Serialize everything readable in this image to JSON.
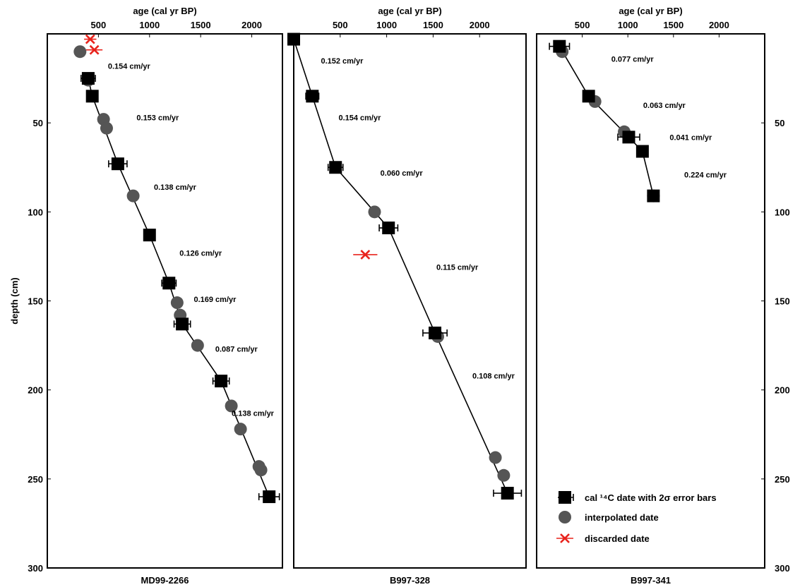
{
  "chart_data": {
    "type": "scatter",
    "shared": {
      "ylabel": "depth (cm)",
      "xlabel": "age (cal yr BP)",
      "ylim": [
        300,
        0
      ],
      "y_ticks": [
        "50",
        "100",
        "150",
        "200",
        "250",
        "300"
      ],
      "y_tick_values": [
        50,
        100,
        150,
        200,
        250,
        300
      ]
    },
    "colors": {
      "dated": "#000000",
      "interpolated": "#555555",
      "discarded": "#e8231c",
      "line": "#000000"
    },
    "legend": {
      "placement": "bottom-right",
      "items": [
        {
          "label": "cal ¹⁴C date with 2σ error bars",
          "marker": "square"
        },
        {
          "label": "interpolated date",
          "marker": "circle"
        },
        {
          "label": "discarded date",
          "marker": "cross"
        }
      ]
    },
    "panels": [
      {
        "title": "MD99-2266",
        "xlabel": "age (cal yr BP)",
        "xlim": [
          0,
          2300
        ],
        "x_ticks": [
          "500",
          "1000",
          "1500",
          "2000"
        ],
        "x_tick_values": [
          500,
          1000,
          1500,
          2000
        ],
        "dated": [
          {
            "age": 400,
            "depth": 25,
            "err": 70
          },
          {
            "age": 440,
            "depth": 35,
            "err": 40
          },
          {
            "age": 690,
            "depth": 73,
            "err": 90
          },
          {
            "age": 1000,
            "depth": 113,
            "err": 30
          },
          {
            "age": 1190,
            "depth": 140,
            "err": 70
          },
          {
            "age": 1320,
            "depth": 163,
            "err": 80
          },
          {
            "age": 1700,
            "depth": 195,
            "err": 80
          },
          {
            "age": 2170,
            "depth": 260,
            "err": 100
          }
        ],
        "interpolated": [
          {
            "age": 320,
            "depth": 10
          },
          {
            "age": 400,
            "depth": 26
          },
          {
            "age": 550,
            "depth": 48
          },
          {
            "age": 580,
            "depth": 53
          },
          {
            "age": 840,
            "depth": 91
          },
          {
            "age": 1270,
            "depth": 151
          },
          {
            "age": 1300,
            "depth": 158
          },
          {
            "age": 1470,
            "depth": 175
          },
          {
            "age": 1800,
            "depth": 209
          },
          {
            "age": 1890,
            "depth": 222
          },
          {
            "age": 2070,
            "depth": 243
          },
          {
            "age": 2090,
            "depth": 245
          }
        ],
        "discarded": [
          {
            "age": 420,
            "depth": 3,
            "err": 60
          },
          {
            "age": 460,
            "depth": 9,
            "err": 80
          }
        ],
        "line": [
          [
            400,
            25
          ],
          [
            440,
            35
          ],
          [
            690,
            73
          ],
          [
            1000,
            113
          ],
          [
            1190,
            140
          ],
          [
            1320,
            163
          ],
          [
            1700,
            195
          ],
          [
            2170,
            260
          ]
        ],
        "rates": [
          {
            "text": "0.154 cm/yr",
            "age": 800,
            "depth": 18
          },
          {
            "text": "0.153 cm/yr",
            "age": 1080,
            "depth": 47
          },
          {
            "text": "0.138 cm/yr",
            "age": 1250,
            "depth": 86
          },
          {
            "text": "0.126 cm/yr",
            "age": 1500,
            "depth": 123
          },
          {
            "text": "0.169 cm/yr",
            "age": 1640,
            "depth": 149
          },
          {
            "text": "0.087 cm/yr",
            "age": 1850,
            "depth": 177
          },
          {
            "text": "0.138 cm/yr",
            "age": 2010,
            "depth": 213
          }
        ]
      },
      {
        "title": "B997-328",
        "xlabel": "age (cal yr BP)",
        "xlim": [
          0,
          2500
        ],
        "x_ticks": [
          "500",
          "1000",
          "1500",
          "2000"
        ],
        "x_tick_values": [
          500,
          1000,
          1500,
          2000
        ],
        "dated": [
          {
            "age": 0,
            "depth": 3,
            "err": 0
          },
          {
            "age": 200,
            "depth": 35,
            "err": 70
          },
          {
            "age": 450,
            "depth": 75,
            "err": 80
          },
          {
            "age": 1020,
            "depth": 109,
            "err": 100
          },
          {
            "age": 1520,
            "depth": 168,
            "err": 130
          },
          {
            "age": 2300,
            "depth": 258,
            "err": 150
          }
        ],
        "interpolated": [
          {
            "age": 870,
            "depth": 100
          },
          {
            "age": 1550,
            "depth": 170
          },
          {
            "age": 2170,
            "depth": 238
          },
          {
            "age": 2260,
            "depth": 248
          }
        ],
        "discarded": [
          {
            "age": 770,
            "depth": 124,
            "err": 130
          }
        ],
        "line": [
          [
            0,
            3
          ],
          [
            200,
            35
          ],
          [
            450,
            75
          ],
          [
            1020,
            109
          ],
          [
            1520,
            168
          ],
          [
            2300,
            258
          ]
        ],
        "rates": [
          {
            "text": "0.152 cm/yr",
            "age": 520,
            "depth": 15
          },
          {
            "text": "0.154 cm/yr",
            "age": 710,
            "depth": 47
          },
          {
            "text": "0.060 cm/yr",
            "age": 1160,
            "depth": 78
          },
          {
            "text": "0.115 cm/yr",
            "age": 1760,
            "depth": 131
          },
          {
            "text": "0.108 cm/yr",
            "age": 2150,
            "depth": 192
          }
        ]
      },
      {
        "title": "B997-341",
        "xlabel": "age (cal yr BP)",
        "xlim": [
          0,
          2500
        ],
        "x_ticks": [
          "500",
          "1000",
          "1500",
          "2000"
        ],
        "x_tick_values": [
          500,
          1000,
          1500,
          2000
        ],
        "dated": [
          {
            "age": 250,
            "depth": 7,
            "err": 110
          },
          {
            "age": 570,
            "depth": 35,
            "err": 40
          },
          {
            "age": 1010,
            "depth": 58,
            "err": 120
          },
          {
            "age": 1160,
            "depth": 66,
            "err": 0
          },
          {
            "age": 1280,
            "depth": 91,
            "err": 0
          }
        ],
        "interpolated": [
          {
            "age": 280,
            "depth": 10
          },
          {
            "age": 640,
            "depth": 38
          },
          {
            "age": 960,
            "depth": 55
          },
          {
            "age": 1280,
            "depth": 91
          }
        ],
        "discarded": [],
        "line": [
          [
            250,
            7
          ],
          [
            570,
            35
          ],
          [
            1010,
            58
          ],
          [
            1160,
            66
          ],
          [
            1280,
            91
          ]
        ],
        "rates": [
          {
            "text": "0.077 cm/yr",
            "age": 1050,
            "depth": 14
          },
          {
            "text": "0.063 cm/yr",
            "age": 1400,
            "depth": 40
          },
          {
            "text": "0.041 cm/yr",
            "age": 1690,
            "depth": 58
          },
          {
            "text": "0.224 cm/yr",
            "age": 1850,
            "depth": 79
          }
        ]
      }
    ]
  }
}
